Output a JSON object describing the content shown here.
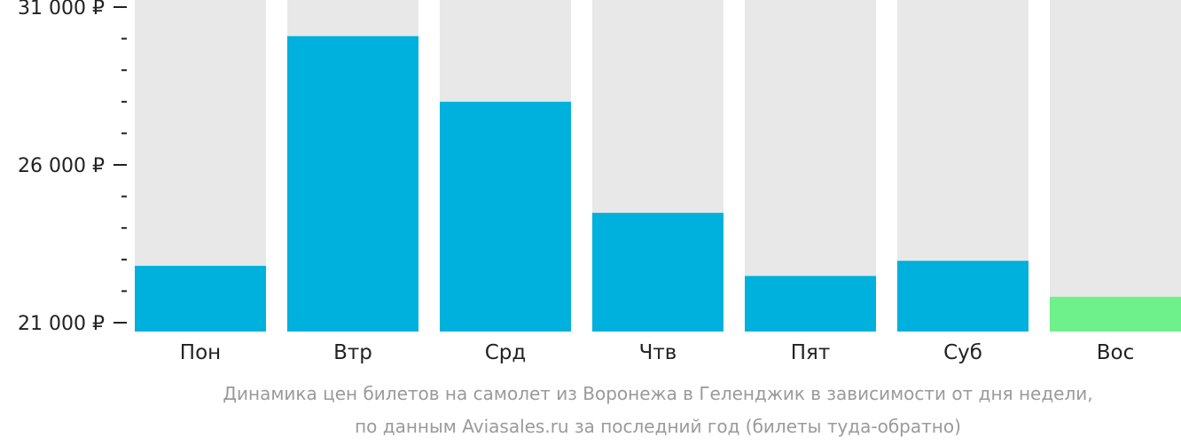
{
  "chart_data": {
    "type": "bar",
    "categories": [
      "Пон",
      "Втр",
      "Срд",
      "Чтв",
      "Пят",
      "Суб",
      "Вос"
    ],
    "values": [
      22800,
      30080,
      28000,
      24480,
      22480,
      22960,
      21820
    ],
    "ylim": [
      21000,
      31000
    ],
    "y_major_ticks": [
      21000,
      26000,
      31000
    ],
    "y_tick_labels": [
      "21 000 ₽",
      "26 000 ₽",
      "31 000 ₽"
    ],
    "y_minor_ticks": [
      22000,
      23000,
      24000,
      25000,
      27000,
      28000,
      29000,
      30000
    ],
    "highlight_index": 6,
    "grid": false,
    "colors": {
      "bar": "#00b0dd",
      "highlight": "#6ef08a",
      "track": "#e8e8e8",
      "axis": "#222222"
    },
    "caption_lines": [
      "Динамика цен билетов на самолет из Воронежа в Геленджик в зависимости от дня недели,",
      "по данным Aviasales.ru за последний год (билеты туда-обратно)"
    ]
  }
}
